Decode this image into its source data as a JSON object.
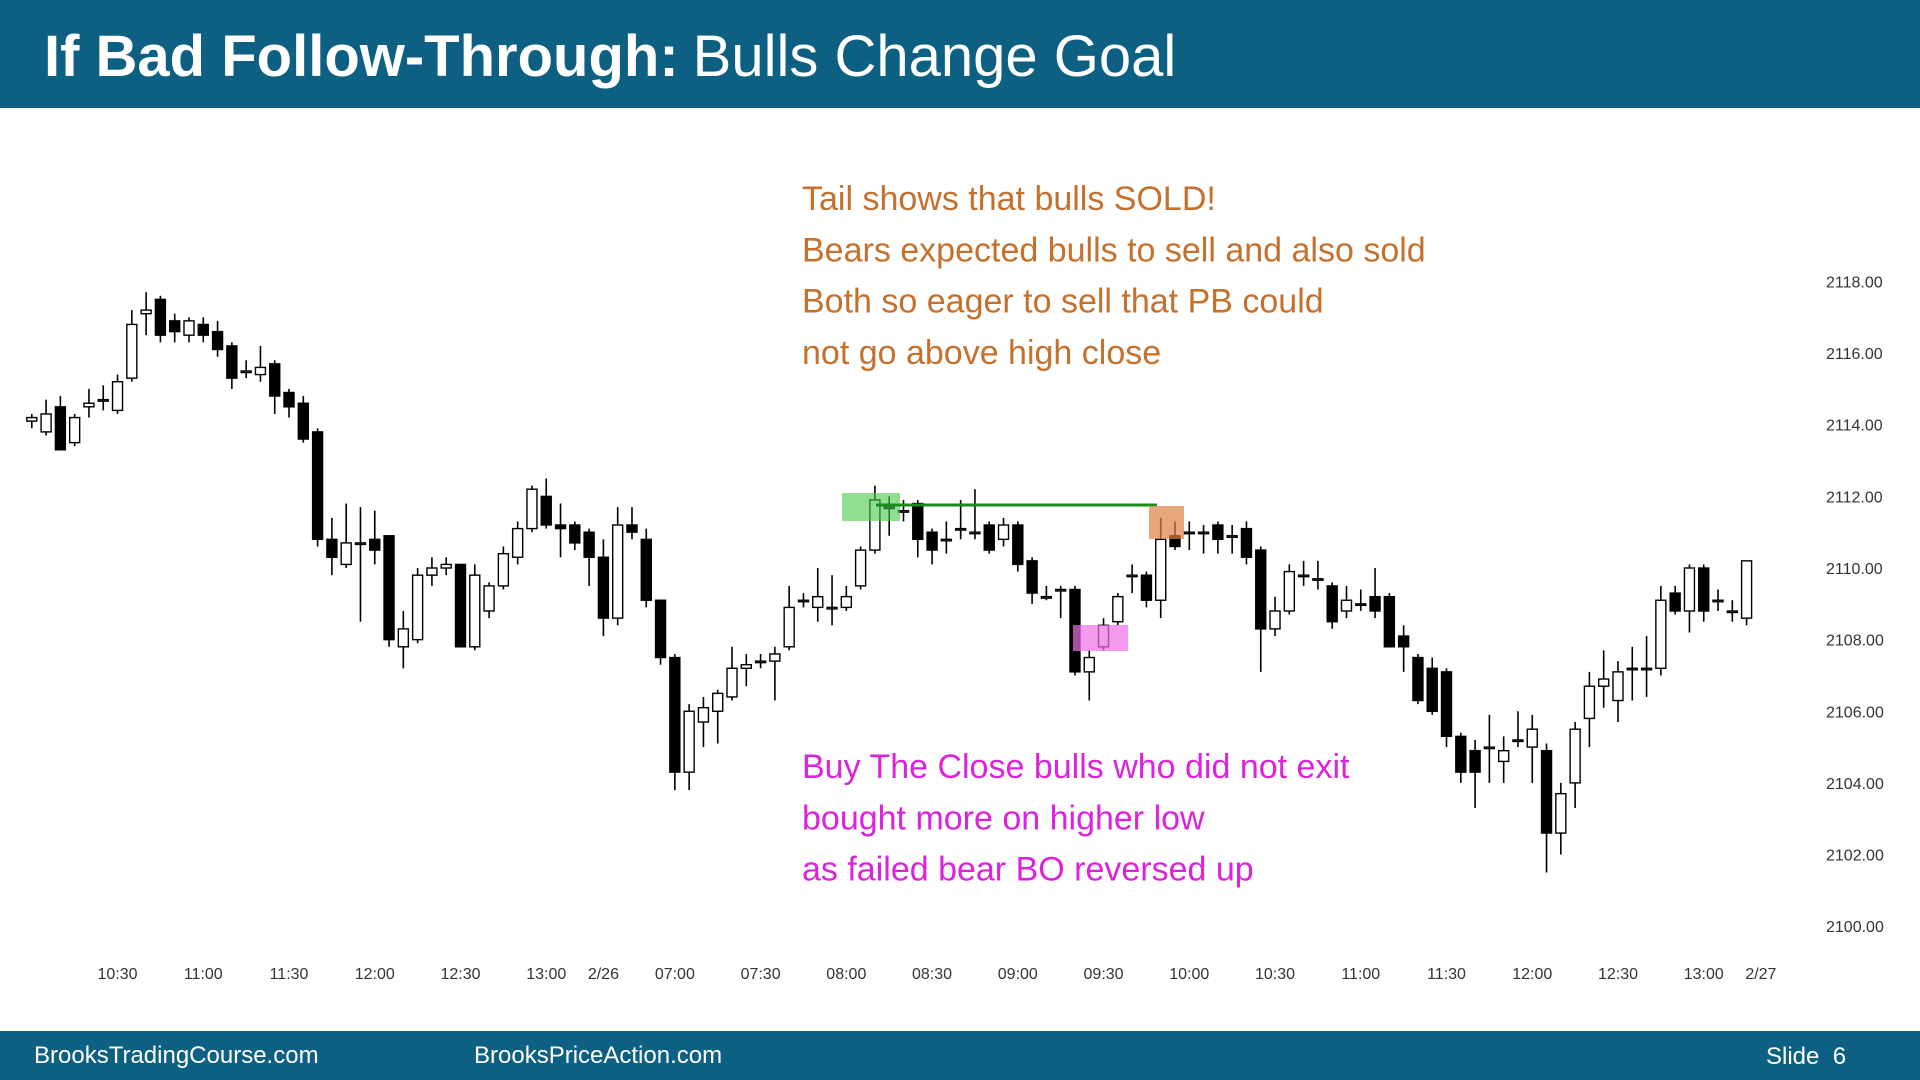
{
  "header": {
    "title_bold": "If Bad Follow-Through:",
    "title": "Bulls Change Goal"
  },
  "chart_data": {
    "type": "candlestick",
    "categories": [
      null,
      null,
      null,
      null,
      null,
      null,
      "10:30",
      null,
      null,
      null,
      null,
      null,
      "11:00",
      null,
      null,
      null,
      null,
      null,
      "11:30",
      null,
      null,
      null,
      null,
      null,
      "12:00",
      null,
      null,
      null,
      null,
      null,
      "12:30",
      null,
      null,
      null,
      null,
      null,
      "13:00",
      null,
      null,
      null,
      "2/26",
      null,
      null,
      null,
      null,
      "07:00",
      null,
      null,
      null,
      null,
      null,
      "07:30",
      null,
      null,
      null,
      null,
      null,
      "08:00",
      null,
      null,
      null,
      null,
      null,
      "08:30",
      null,
      null,
      null,
      null,
      null,
      "09:00",
      null,
      null,
      null,
      null,
      null,
      "09:30",
      null,
      null,
      null,
      null,
      null,
      "10:00",
      null,
      null,
      null,
      null,
      null,
      "10:30",
      null,
      null,
      null,
      null,
      null,
      "11:00",
      null,
      null,
      null,
      null,
      null,
      "11:30",
      null,
      null,
      null,
      null,
      null,
      "12:00",
      null,
      null,
      null,
      null,
      null,
      "12:30",
      null,
      null,
      null,
      null,
      null,
      "13:00",
      null,
      null,
      null,
      "2/27"
    ],
    "open": [
      2114.1,
      2113.8,
      2114.5,
      2113.5,
      2114.5,
      2114.7,
      2114.4,
      2115.3,
      2117.1,
      2117.5,
      2116.9,
      2116.5,
      2116.8,
      2116.6,
      2116.2,
      2115.5,
      2115.4,
      2115.7,
      2114.9,
      2114.6,
      2113.8,
      2110.8,
      2110.1,
      2110.7,
      2110.8,
      2110.9,
      2107.8,
      2108.0,
      2109.8,
      2110.0,
      2110.1,
      2107.8,
      2108.8,
      2109.5,
      2110.3,
      2111.1,
      2112.0,
      2111.2,
      2111.2,
      2111.0,
      2110.3,
      2108.6,
      2111.2,
      2110.8,
      2109.1,
      2107.5,
      2104.3,
      2105.7,
      2106.0,
      2106.4,
      2107.2,
      2107.4,
      2107.4,
      2107.8,
      2109.1,
      2108.9,
      2108.9,
      2108.9,
      2109.5,
      2110.5,
      2111.7,
      2111.6,
      2111.8,
      2111.0,
      2110.8,
      2111.1,
      2111.0,
      2111.2,
      2110.8,
      2111.2,
      2110.2,
      2109.2,
      2109.4,
      2109.4,
      2107.1,
      2107.8,
      2108.5,
      2109.8,
      2109.8,
      2109.1,
      2110.9,
      2111.0,
      2111.0,
      2111.2,
      2110.9,
      2111.1,
      2110.5,
      2108.3,
      2108.8,
      2109.8,
      2109.7,
      2109.5,
      2108.8,
      2109.0,
      2109.2,
      2109.2,
      2108.1,
      2107.5,
      2107.2,
      2107.1,
      2105.3,
      2104.9,
      2105.0,
      2104.6,
      2105.2,
      2105.0,
      2104.9,
      2102.6,
      2104.0,
      2105.8,
      2106.7,
      2106.3,
      2107.2,
      2107.2,
      2107.2,
      2109.3,
      2108.8,
      2110.0,
      2109.1,
      2108.8,
      2108.6,
      null
    ],
    "high": [
      2114.3,
      2114.7,
      2114.8,
      2114.3,
      2115.0,
      2115.1,
      2115.4,
      2117.2,
      2117.7,
      2117.6,
      2117.1,
      2117.0,
      2117.0,
      2116.9,
      2116.3,
      2115.8,
      2116.2,
      2115.8,
      2115.0,
      2114.8,
      2113.9,
      2111.4,
      2111.8,
      2111.7,
      2111.6,
      2110.9,
      2108.8,
      2110.0,
      2110.3,
      2110.3,
      2110.1,
      2110.1,
      2109.6,
      2110.6,
      2111.3,
      2112.3,
      2112.5,
      2111.8,
      2111.3,
      2111.1,
      2110.8,
      2111.7,
      2111.7,
      2111.1,
      2109.1,
      2107.6,
      2106.2,
      2106.4,
      2106.6,
      2107.8,
      2107.6,
      2107.6,
      2107.8,
      2109.5,
      2109.3,
      2110.0,
      2109.8,
      2109.5,
      2110.6,
      2112.3,
      2112.0,
      2111.9,
      2111.9,
      2111.1,
      2111.3,
      2111.9,
      2112.2,
      2111.3,
      2111.4,
      2111.3,
      2110.3,
      2109.5,
      2109.5,
      2109.5,
      2107.7,
      2108.6,
      2109.3,
      2110.1,
      2109.9,
      2111.4,
      2111.3,
      2111.3,
      2111.2,
      2111.3,
      2111.2,
      2111.3,
      2110.6,
      2109.2,
      2110.1,
      2110.2,
      2110.2,
      2109.6,
      2109.5,
      2109.4,
      2110.0,
      2109.3,
      2108.4,
      2107.6,
      2107.5,
      2107.2,
      2105.4,
      2105.2,
      2105.9,
      2105.3,
      2106.0,
      2105.9,
      2105.1,
      2104.0,
      2105.7,
      2107.1,
      2107.7,
      2107.4,
      2107.8,
      2108.1,
      2109.5,
      2109.5,
      2110.1,
      2110.1,
      2109.4,
      2109.1,
      2110.2,
      null
    ],
    "low": [
      2113.9,
      2113.7,
      2113.3,
      2113.4,
      2114.2,
      2114.4,
      2114.3,
      2115.2,
      2116.5,
      2116.3,
      2116.3,
      2116.3,
      2116.3,
      2115.9,
      2115.0,
      2115.3,
      2115.2,
      2114.3,
      2114.2,
      2113.5,
      2110.6,
      2109.8,
      2110.0,
      2108.5,
      2110.1,
      2107.8,
      2107.2,
      2107.9,
      2109.5,
      2109.8,
      2107.8,
      2107.7,
      2108.6,
      2109.4,
      2110.1,
      2111.0,
      2111.1,
      2110.3,
      2110.5,
      2109.5,
      2108.1,
      2108.4,
      2110.8,
      2108.9,
      2107.3,
      2103.8,
      2103.8,
      2105.0,
      2105.1,
      2106.3,
      2106.7,
      2107.2,
      2106.3,
      2107.7,
      2108.9,
      2108.5,
      2108.4,
      2108.8,
      2109.4,
      2110.4,
      2110.9,
      2111.3,
      2110.3,
      2110.1,
      2110.4,
      2110.8,
      2110.8,
      2110.4,
      2110.6,
      2109.9,
      2109.0,
      2109.1,
      2108.6,
      2107.0,
      2106.3,
      2107.7,
      2108.4,
      2109.3,
      2108.9,
      2108.6,
      2110.5,
      2110.5,
      2110.4,
      2110.4,
      2110.4,
      2110.1,
      2107.1,
      2108.1,
      2108.7,
      2109.5,
      2109.4,
      2108.3,
      2108.6,
      2108.8,
      2108.6,
      2107.8,
      2107.1,
      2106.2,
      2105.9,
      2105.0,
      2104.0,
      2103.3,
      2104.0,
      2104.0,
      2105.0,
      2104.0,
      2101.5,
      2102.0,
      2103.3,
      2105.0,
      2106.1,
      2105.7,
      2106.3,
      2106.4,
      2107.0,
      2108.7,
      2108.2,
      2108.5,
      2108.8,
      2108.5,
      2108.4,
      null
    ],
    "close": [
      2114.2,
      2114.3,
      2113.3,
      2114.2,
      2114.6,
      2114.7,
      2115.2,
      2116.8,
      2117.2,
      2116.5,
      2116.6,
      2116.9,
      2116.5,
      2116.1,
      2115.3,
      2115.5,
      2115.6,
      2114.8,
      2114.5,
      2113.6,
      2110.8,
      2110.3,
      2110.7,
      2110.7,
      2110.5,
      2108.0,
      2108.3,
      2109.8,
      2110.0,
      2110.1,
      2107.8,
      2109.8,
      2109.5,
      2110.4,
      2111.1,
      2112.2,
      2111.2,
      2111.1,
      2110.7,
      2110.3,
      2108.6,
      2111.2,
      2111.0,
      2109.1,
      2107.5,
      2104.3,
      2106.0,
      2106.1,
      2106.5,
      2107.2,
      2107.3,
      2107.4,
      2107.6,
      2108.9,
      2109.1,
      2109.2,
      2108.9,
      2109.2,
      2110.5,
      2111.9,
      2111.7,
      2111.6,
      2110.8,
      2110.5,
      2110.8,
      2111.1,
      2111.0,
      2110.5,
      2111.2,
      2110.1,
      2109.3,
      2109.2,
      2109.4,
      2107.1,
      2107.5,
      2108.4,
      2109.2,
      2109.8,
      2109.1,
      2110.8,
      2110.6,
      2111.0,
      2111.0,
      2110.8,
      2110.9,
      2110.3,
      2108.3,
      2108.8,
      2109.9,
      2109.8,
      2109.7,
      2108.5,
      2109.1,
      2109.0,
      2108.8,
      2107.8,
      2107.8,
      2106.3,
      2106.0,
      2105.3,
      2104.3,
      2104.3,
      2105.0,
      2104.9,
      2105.2,
      2105.5,
      2102.6,
      2103.7,
      2105.5,
      2106.7,
      2106.9,
      2107.1,
      2107.2,
      2107.2,
      2109.1,
      2108.8,
      2110.0,
      2108.8,
      2109.1,
      2108.8,
      2110.2,
      null
    ],
    "up_color": "#ffffff",
    "down_color": "#000000",
    "ylim": [
      2099,
      2121
    ],
    "yticks": [
      {
        "value": 2100,
        "label": "2100.00"
      },
      {
        "value": 2102,
        "label": "2102.00"
      },
      {
        "value": 2104,
        "label": "2104.00"
      },
      {
        "value": 2106,
        "label": "2106.00"
      },
      {
        "value": 2108,
        "label": "2108.00"
      },
      {
        "value": 2110,
        "label": "2110.00"
      },
      {
        "value": 2112,
        "label": "2112.00"
      },
      {
        "value": 2114,
        "label": "2114.00"
      },
      {
        "value": 2116,
        "label": "2116.00"
      },
      {
        "value": 2118,
        "label": "2118.00"
      }
    ],
    "annotations": [
      {
        "color": "#c5702c",
        "lines": [
          "Tail shows that bulls SOLD!",
          "Bears expected bulls to sell and also sold",
          "Both so eager to sell that PB could",
          "not go above high close"
        ]
      },
      {
        "color": "#dc22dc",
        "lines": [
          "Buy The Close bulls who did not exit",
          "bought more on higher low",
          "as failed bear BO reversed up"
        ]
      }
    ]
  },
  "footer": {
    "left": "BrooksTradingCourse.com",
    "center": "BrooksPriceAction.com",
    "slide": "Slide  6"
  }
}
